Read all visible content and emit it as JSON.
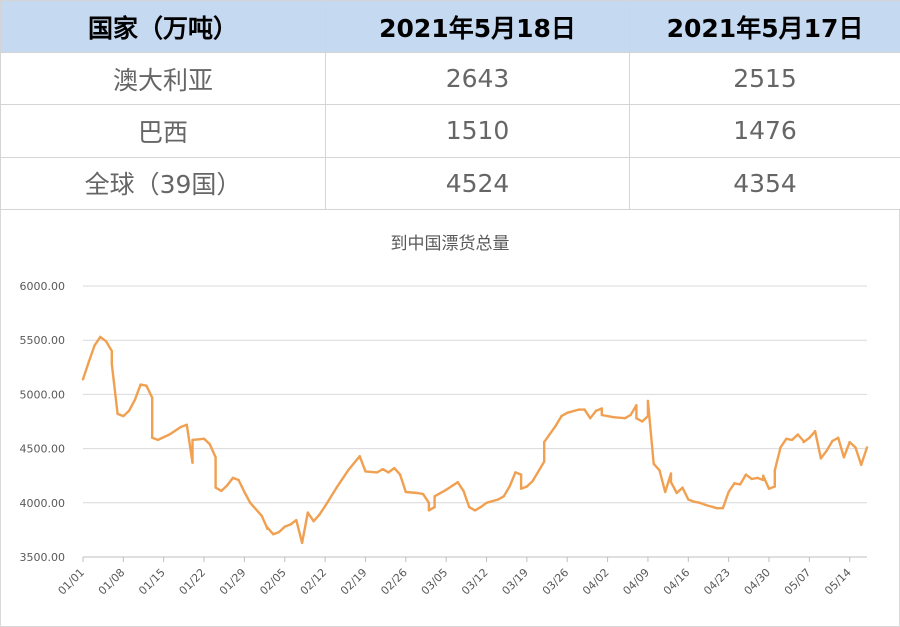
{
  "table": {
    "headers": [
      "国家（万吨）",
      "2021年5月18日",
      "2021年5月17日"
    ],
    "rows": [
      [
        "澳大利亚",
        "2643",
        "2515"
      ],
      [
        "巴西",
        "1510",
        "1476"
      ],
      [
        "全球（39国）",
        "4524",
        "4354"
      ]
    ]
  },
  "colors": {
    "header_bg": "#c5d9f1",
    "line": "#f0a050",
    "grid": "#d9d9d9",
    "text_muted": "#595959"
  },
  "chart_data": {
    "type": "line",
    "title": "到中国漂货总量",
    "xlabel": "",
    "ylabel": "",
    "ylim": [
      3500,
      6000
    ],
    "yticks": [
      "3500.00",
      "4000.00",
      "4500.00",
      "5000.00",
      "5500.00",
      "6000.00"
    ],
    "xticks": [
      "01/01",
      "01/08",
      "01/15",
      "01/22",
      "01/29",
      "02/05",
      "02/12",
      "02/19",
      "02/26",
      "03/05",
      "03/12",
      "03/19",
      "03/26",
      "04/02",
      "04/09",
      "04/16",
      "04/23",
      "04/30",
      "05/07",
      "05/14"
    ],
    "grid": true,
    "series": [
      {
        "name": "",
        "points": [
          [
            "01/01",
            5140
          ],
          [
            "01/02",
            5300
          ],
          [
            "01/03",
            5450
          ],
          [
            "01/04",
            5530
          ],
          [
            "01/05",
            5490
          ],
          [
            "01/06",
            5400
          ],
          [
            "01/06",
            5280
          ],
          [
            "01/07",
            4820
          ],
          [
            "01/08",
            4800
          ],
          [
            "01/09",
            4850
          ],
          [
            "01/10",
            4950
          ],
          [
            "01/11",
            5090
          ],
          [
            "01/12",
            5080
          ],
          [
            "01/13",
            4970
          ],
          [
            "01/13",
            4600
          ],
          [
            "01/14",
            4580
          ],
          [
            "01/16",
            4630
          ],
          [
            "01/18",
            4700
          ],
          [
            "01/19",
            4720
          ],
          [
            "01/20",
            4370
          ],
          [
            "01/20",
            4580
          ],
          [
            "01/22",
            4590
          ],
          [
            "01/23",
            4540
          ],
          [
            "01/24",
            4420
          ],
          [
            "01/24",
            4140
          ],
          [
            "01/25",
            4110
          ],
          [
            "01/26",
            4160
          ],
          [
            "01/27",
            4230
          ],
          [
            "01/28",
            4210
          ],
          [
            "01/29",
            4100
          ],
          [
            "01/30",
            4000
          ],
          [
            "02/01",
            3880
          ],
          [
            "02/02",
            3760
          ],
          [
            "02/02",
            3770
          ],
          [
            "02/03",
            3710
          ],
          [
            "02/04",
            3730
          ],
          [
            "02/05",
            3780
          ],
          [
            "02/06",
            3800
          ],
          [
            "02/07",
            3840
          ],
          [
            "02/08",
            3630
          ],
          [
            "02/09",
            3910
          ],
          [
            "02/10",
            3830
          ],
          [
            "02/11",
            3890
          ],
          [
            "02/12",
            3970
          ],
          [
            "02/14",
            4140
          ],
          [
            "02/16",
            4300
          ],
          [
            "02/18",
            4430
          ],
          [
            "02/19",
            4290
          ],
          [
            "02/21",
            4280
          ],
          [
            "02/22",
            4310
          ],
          [
            "02/23",
            4280
          ],
          [
            "02/24",
            4320
          ],
          [
            "02/25",
            4260
          ],
          [
            "02/26",
            4100
          ],
          [
            "02/28",
            4090
          ],
          [
            "03/01",
            4080
          ],
          [
            "03/02",
            4000
          ],
          [
            "03/02",
            3930
          ],
          [
            "03/03",
            3960
          ],
          [
            "03/03",
            4060
          ],
          [
            "03/05",
            4120
          ],
          [
            "03/07",
            4190
          ],
          [
            "03/08",
            4110
          ],
          [
            "03/09",
            3960
          ],
          [
            "03/10",
            3930
          ],
          [
            "03/11",
            3960
          ],
          [
            "03/12",
            4000
          ],
          [
            "03/14",
            4030
          ],
          [
            "03/15",
            4060
          ],
          [
            "03/16",
            4150
          ],
          [
            "03/17",
            4280
          ],
          [
            "03/18",
            4260
          ],
          [
            "03/18",
            4130
          ],
          [
            "03/19",
            4150
          ],
          [
            "03/20",
            4200
          ],
          [
            "03/22",
            4380
          ],
          [
            "03/22",
            4560
          ],
          [
            "03/24",
            4710
          ],
          [
            "03/25",
            4800
          ],
          [
            "03/26",
            4830
          ],
          [
            "03/28",
            4860
          ],
          [
            "03/29",
            4860
          ],
          [
            "03/30",
            4780
          ],
          [
            "03/31",
            4850
          ],
          [
            "04/01",
            4870
          ],
          [
            "04/01",
            4810
          ],
          [
            "04/03",
            4790
          ],
          [
            "04/05",
            4780
          ],
          [
            "04/06",
            4810
          ],
          [
            "04/07",
            4900
          ],
          [
            "04/07",
            4780
          ],
          [
            "04/08",
            4750
          ],
          [
            "04/09",
            4800
          ],
          [
            "04/09",
            4940
          ],
          [
            "04/10",
            4360
          ],
          [
            "04/11",
            4300
          ],
          [
            "04/12",
            4100
          ],
          [
            "04/13",
            4270
          ],
          [
            "04/13",
            4190
          ],
          [
            "04/14",
            4090
          ],
          [
            "04/15",
            4140
          ],
          [
            "04/16",
            4030
          ],
          [
            "04/17",
            4010
          ],
          [
            "04/18",
            4000
          ],
          [
            "04/19",
            3980
          ],
          [
            "04/21",
            3950
          ],
          [
            "04/22",
            3950
          ],
          [
            "04/23",
            4100
          ],
          [
            "04/24",
            4180
          ],
          [
            "04/25",
            4170
          ],
          [
            "04/26",
            4260
          ],
          [
            "04/27",
            4220
          ],
          [
            "04/28",
            4230
          ],
          [
            "04/29",
            4210
          ],
          [
            "04/29",
            4250
          ],
          [
            "04/30",
            4130
          ],
          [
            "05/01",
            4150
          ],
          [
            "05/01",
            4300
          ],
          [
            "05/02",
            4510
          ],
          [
            "05/03",
            4590
          ],
          [
            "05/04",
            4580
          ],
          [
            "05/05",
            4630
          ],
          [
            "05/06",
            4570
          ],
          [
            "05/06",
            4560
          ],
          [
            "05/07",
            4600
          ],
          [
            "05/08",
            4660
          ],
          [
            "05/09",
            4410
          ],
          [
            "05/10",
            4480
          ],
          [
            "05/11",
            4570
          ],
          [
            "05/12",
            4600
          ],
          [
            "05/13",
            4420
          ],
          [
            "05/14",
            4560
          ],
          [
            "05/15",
            4510
          ],
          [
            "05/16",
            4350
          ],
          [
            "05/17",
            4510
          ]
        ]
      }
    ]
  }
}
